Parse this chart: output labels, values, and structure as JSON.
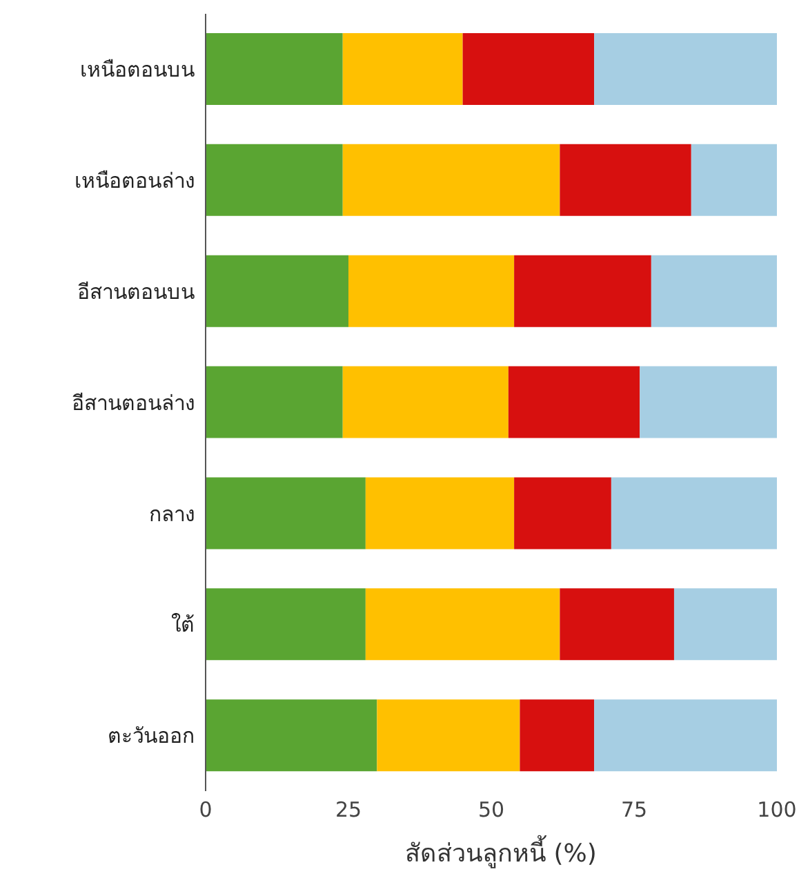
{
  "chart_data": {
    "type": "bar",
    "orientation": "horizontal",
    "stacked": true,
    "xlabel": "สัดส่วนลูกหนี้ (%)",
    "categories": [
      "เหนือตอนบน",
      "เหนือตอนล่าง",
      "อีสานตอนบน",
      "อีสานตอนล่าง",
      "กลาง",
      "ใต้",
      "ตะวันออก"
    ],
    "series": [
      {
        "color": "#5aa532",
        "values": [
          24,
          24,
          25,
          24,
          28,
          28,
          30
        ]
      },
      {
        "color": "#ffc000",
        "values": [
          21,
          38,
          29,
          29,
          26,
          34,
          25
        ]
      },
      {
        "color": "#d7100f",
        "values": [
          23,
          23,
          24,
          23,
          17,
          20,
          13
        ]
      },
      {
        "color": "#a6cee3",
        "values": [
          32,
          15,
          22,
          24,
          29,
          18,
          32
        ]
      }
    ],
    "xlim": [
      0,
      100
    ],
    "xticks": [
      0,
      25,
      50,
      75,
      100
    ],
    "grid": false,
    "legend": false
  }
}
